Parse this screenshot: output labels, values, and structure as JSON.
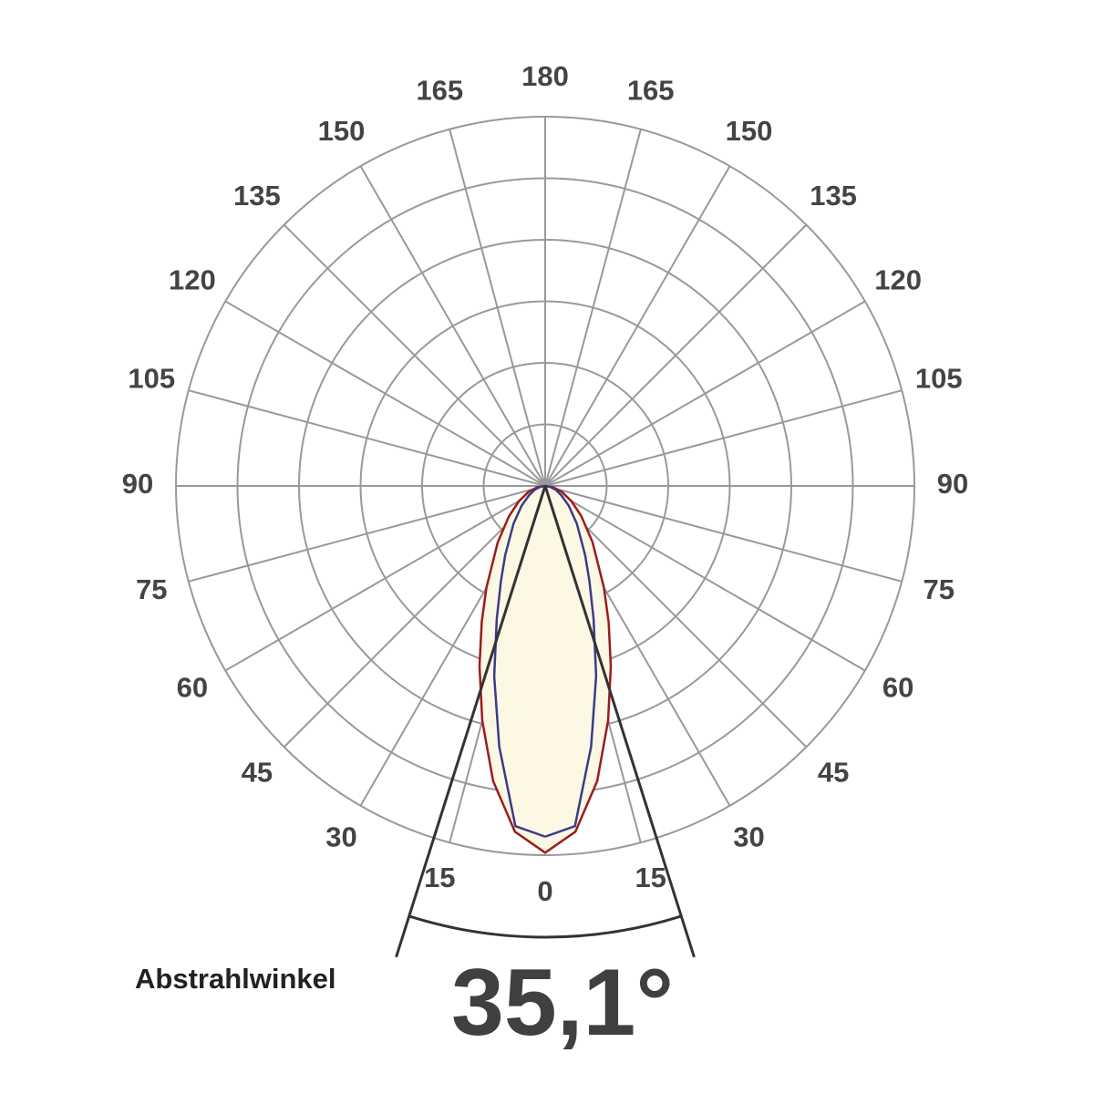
{
  "chart_data": {
    "type": "polar",
    "rlim": [
      0,
      6
    ],
    "rings": [
      1,
      2,
      3,
      4,
      5,
      6
    ],
    "grid": true,
    "angle_ticks": [
      0,
      15,
      30,
      45,
      60,
      75,
      90,
      105,
      120,
      135,
      150,
      165,
      180
    ],
    "angles": [
      0,
      5,
      10,
      15,
      20,
      25,
      30,
      40,
      50,
      60,
      70,
      80,
      90
    ],
    "fill": "#fcf8e3",
    "series": [
      {
        "color": "#9b1c1c",
        "values": [
          5.96,
          5.64,
          4.87,
          3.95,
          3.12,
          2.44,
          1.91,
          1.2,
          0.77,
          0.49,
          0.29,
          0.14,
          0
        ]
      },
      {
        "color": "#3b3b8a",
        "values": [
          5.7,
          5.55,
          4.3,
          3.2,
          2.3,
          1.7,
          1.3,
          0.8,
          0.5,
          0.3,
          0.18,
          0.08,
          0
        ]
      }
    ],
    "beam_label": "Abstrahlwinkel",
    "beam_angle": {
      "value": 35.1,
      "label": "35,1°"
    }
  }
}
